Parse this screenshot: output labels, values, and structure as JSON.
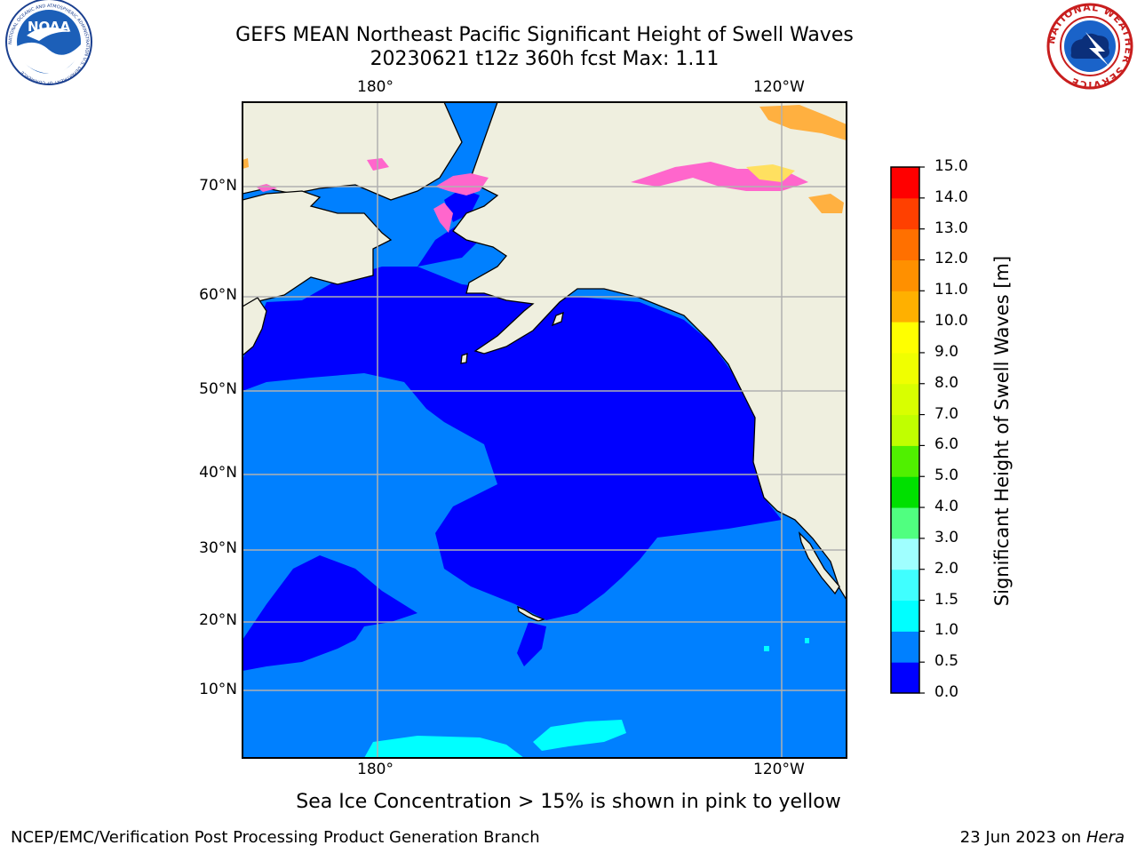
{
  "title": {
    "line1": "GEFS MEAN Northeast Pacific Significant Height of Swell Waves",
    "line2": "20230621 t12z 360h fcst   Max: 1.11"
  },
  "logos": {
    "left": {
      "icon": "noaa-logo",
      "text": "NOAA",
      "ring_text": "NATIONAL OCEANIC AND ATMOSPHERIC ADMINISTRATION  U.S. DEPARTMENT OF COMMERCE"
    },
    "right": {
      "icon": "nws-logo",
      "ring_text": "NATIONAL WEATHER SERVICE"
    }
  },
  "map": {
    "lon_ticks": [
      "180°",
      "120°W"
    ],
    "lat_ticks": [
      "70°N",
      "60°N",
      "50°N",
      "40°N",
      "30°N",
      "20°N",
      "10°N"
    ],
    "colors": {
      "ocean_deep": "#0000ff",
      "ocean": "#0080ff",
      "swell_1_1_5": "#00ffff",
      "land": "#efefdf",
      "ice_pink": "#ff66cc",
      "ice_orange": "#ffb040",
      "ice_yellow": "#ffe060",
      "grid": "#b0b0b0"
    }
  },
  "colorbar": {
    "label": "Significant Height of Swell Waves [m]",
    "ticks": [
      "15.0",
      "14.0",
      "13.0",
      "12.0",
      "11.0",
      "10.0",
      "9.0",
      "8.0",
      "7.0",
      "6.0",
      "5.0",
      "4.0",
      "3.0",
      "2.0",
      "1.5",
      "1.0",
      "0.5",
      "0.0"
    ],
    "colors": [
      "#0000ff",
      "#0080ff",
      "#00ffff",
      "#40ffff",
      "#a0ffff",
      "#50ff80",
      "#00e000",
      "#50f000",
      "#c0ff00",
      "#d8ff00",
      "#f0ff00",
      "#ffff00",
      "#ffb000",
      "#ff9000",
      "#ff7000",
      "#ff4000",
      "#ff0000"
    ]
  },
  "footer": {
    "note": "Sea Ice Concentration > 15% is shown in pink to yellow",
    "credit": "NCEP/EMC/Verification Post Processing Product Generation Branch",
    "date": "23 Jun 2023 on",
    "host": "Hera"
  }
}
